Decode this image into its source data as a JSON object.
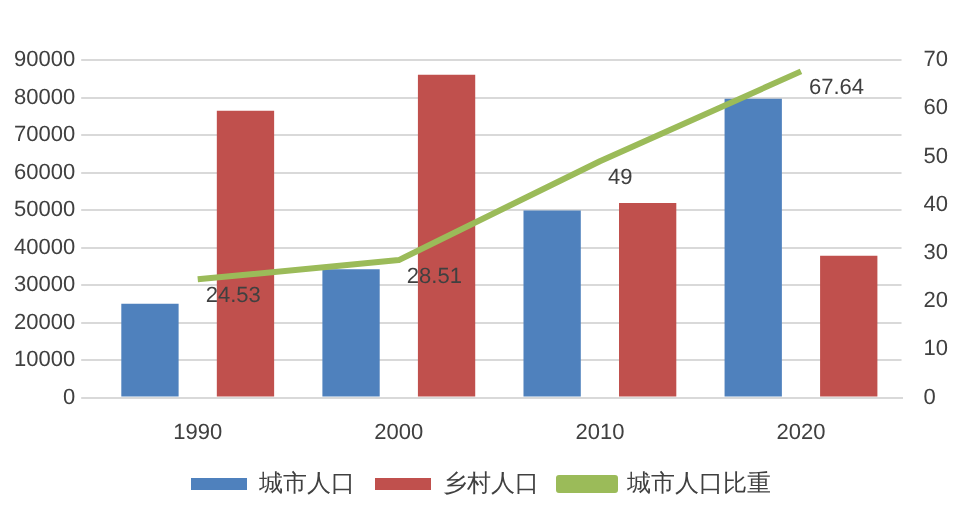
{
  "chart_data": {
    "type": "bar",
    "categories": [
      "1990",
      "2000",
      "2010",
      "2020"
    ],
    "series": [
      {
        "name": "城市人口",
        "color": "#4f81bd",
        "values": [
          25000,
          34200,
          49900,
          79700
        ]
      },
      {
        "name": "乡村人口",
        "color": "#c0504d",
        "values": [
          76500,
          86100,
          51900,
          37800
        ]
      },
      {
        "name": "城市人口比重",
        "type": "line",
        "axis": "y2",
        "color": "#9bbb59",
        "values": [
          24.53,
          28.51,
          49,
          67.64
        ],
        "value_labels": [
          "24.53",
          "28.51",
          "49",
          "67.64"
        ]
      }
    ],
    "ylim": [
      0,
      90000
    ],
    "yticks": [
      0,
      10000,
      20000,
      30000,
      40000,
      50000,
      60000,
      70000,
      80000,
      90000
    ],
    "y2lim": [
      0,
      70
    ],
    "y2ticks": [
      0,
      10,
      20,
      30,
      40,
      50,
      60,
      70
    ],
    "grid": "y",
    "legend": "bottom",
    "marker": "none"
  }
}
